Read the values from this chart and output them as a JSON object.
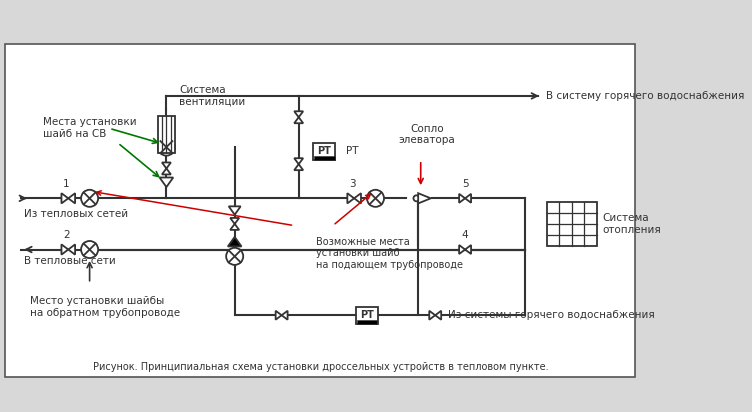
{
  "title": "Рисунок. Принципиальная схема установки дроссельных устройств в тепловом пункте.",
  "bg_color": "#d8d8d8",
  "border_color": "#555555",
  "line_color": "#333333",
  "green_color": "#007700",
  "red_color": "#cc0000",
  "labels": {
    "sistema_ventilyacii": "Система\nвентиляции",
    "v_sistemu_gvs": "В систему горячего водоснабжения",
    "soplo_elevatora": "Сопло\nэлеватора",
    "iz_teplovyh_setei": "Из тепловых сетей",
    "v_teplovye_seti": "В тепловые сети",
    "vozmozhnye_mesta": "Возможные места\nустановки шайб\nна подающем трубопроводе",
    "mesta_ustanovki_shaib_sv": "Места установки\nшайб на СВ",
    "mesto_ustanovki_shaib_obr": "Место установки шайбы\nна обратном трубопроводе",
    "sistema_otopleniya": "Система\nотопления",
    "iz_sistemy_gvs": "Из системы горячего водоснабжения",
    "pt_label": "РТ",
    "pt_label2": "РТ"
  }
}
